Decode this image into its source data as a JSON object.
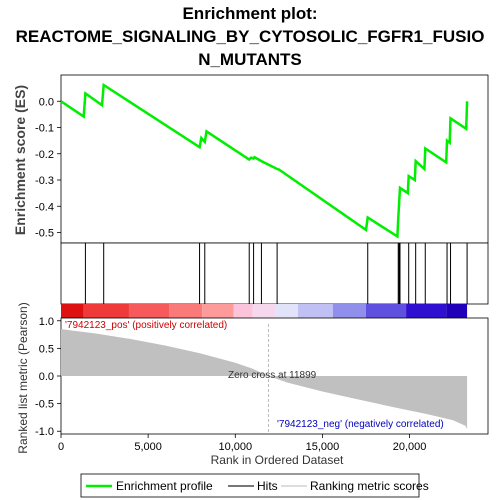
{
  "chart_data": {
    "type": "line",
    "title_lines": [
      "Enrichment plot:",
      "REACTOME_SIGNALING_BY_CYTOSOLIC_FGFR1_FUSIO",
      "N_MUTANTS"
    ],
    "es_panel": {
      "ylabel": "Enrichment score (ES)",
      "yticks": [
        "0.0",
        "-0.1",
        "-0.2",
        "-0.3",
        "-0.4",
        "-0.5"
      ],
      "ytick_values": [
        0.0,
        -0.1,
        -0.2,
        -0.3,
        -0.4,
        -0.5
      ],
      "ylim": [
        -0.54,
        0.1
      ],
      "line_color": "#00ee00",
      "points": [
        [
          0,
          0.0
        ],
        [
          1300,
          -0.058
        ],
        [
          1400,
          0.03
        ],
        [
          2350,
          -0.015
        ],
        [
          2450,
          0.062
        ],
        [
          7950,
          -0.175
        ],
        [
          8050,
          -0.14
        ],
        [
          8250,
          -0.155
        ],
        [
          8350,
          -0.115
        ],
        [
          10800,
          -0.222
        ],
        [
          10900,
          -0.215
        ],
        [
          11050,
          -0.218
        ],
        [
          11100,
          -0.213
        ],
        [
          11500,
          -0.228
        ],
        [
          12400,
          -0.258
        ],
        [
          12500,
          -0.26
        ],
        [
          17500,
          -0.49
        ],
        [
          17600,
          -0.443
        ],
        [
          19300,
          -0.515
        ],
        [
          19350,
          -0.45
        ],
        [
          19400,
          -0.39
        ],
        [
          19450,
          -0.33
        ],
        [
          19900,
          -0.35
        ],
        [
          19950,
          -0.285
        ],
        [
          20300,
          -0.3
        ],
        [
          20350,
          -0.228
        ],
        [
          20850,
          -0.258
        ],
        [
          20900,
          -0.18
        ],
        [
          22100,
          -0.233
        ],
        [
          22150,
          -0.15
        ],
        [
          22300,
          -0.158
        ],
        [
          22350,
          -0.065
        ],
        [
          23250,
          -0.105
        ],
        [
          23300,
          0.0
        ]
      ]
    },
    "hits": [
      1400,
      2450,
      7950,
      8250,
      10800,
      11050,
      11500,
      12400,
      17600,
      19350,
      19400,
      19450,
      19950,
      20350,
      20900,
      22150,
      22350,
      23300
    ],
    "ranked_panel": {
      "ylabel": "Ranked list metric (Pearson)",
      "yticks": [
        "1.0",
        "0.5",
        "0.0",
        "-0.5",
        "-1.0"
      ],
      "ytick_values": [
        1.0,
        0.5,
        0.0,
        -0.5,
        -1.0
      ],
      "ylim": [
        -1.05,
        1.05
      ],
      "fill_color": "#c0c0c0",
      "curve": [
        [
          0,
          0.85
        ],
        [
          500,
          0.83
        ],
        [
          2000,
          0.77
        ],
        [
          4000,
          0.67
        ],
        [
          6000,
          0.55
        ],
        [
          8000,
          0.41
        ],
        [
          10000,
          0.24
        ],
        [
          11000,
          0.13
        ],
        [
          11899,
          0.0
        ],
        [
          13000,
          -0.12
        ],
        [
          15000,
          -0.28
        ],
        [
          17000,
          -0.42
        ],
        [
          19000,
          -0.56
        ],
        [
          21000,
          -0.69
        ],
        [
          22500,
          -0.8
        ],
        [
          23200,
          -0.9
        ],
        [
          23300,
          -0.96
        ]
      ],
      "pos_label": "'7942123_pos' (positively correlated)",
      "neg_label": "'7942123_neg' (negatively correlated)",
      "zero_cross_label": "Zero cross at 11899",
      "zero_cross": 11899,
      "pos_color": "#dd0000",
      "neg_color": "#0000cc"
    },
    "color_bar": [
      {
        "x0": 0,
        "x1": 1300,
        "color": "#dd1111"
      },
      {
        "x0": 1300,
        "x1": 3900,
        "color": "#f03a3a"
      },
      {
        "x0": 3900,
        "x1": 6200,
        "color": "#f65a5a"
      },
      {
        "x0": 6200,
        "x1": 8100,
        "color": "#fa7a7a"
      },
      {
        "x0": 8100,
        "x1": 9900,
        "color": "#fd9a9a"
      },
      {
        "x0": 9900,
        "x1": 11000,
        "color": "#fbc4da"
      },
      {
        "x0": 11000,
        "x1": 12300,
        "color": "#f6d8ee"
      },
      {
        "x0": 12300,
        "x1": 13600,
        "color": "#e2e2f8"
      },
      {
        "x0": 13600,
        "x1": 15600,
        "color": "#c0c0f4"
      },
      {
        "x0": 15600,
        "x1": 17500,
        "color": "#9090ec"
      },
      {
        "x0": 17500,
        "x1": 19800,
        "color": "#6050e0"
      },
      {
        "x0": 19800,
        "x1": 22100,
        "color": "#3010d0"
      },
      {
        "x0": 22100,
        "x1": 23300,
        "color": "#2000b8"
      }
    ],
    "xlabel": "Rank in Ordered Dataset",
    "xticks": [
      "0",
      "5,000",
      "10,000",
      "15,000",
      "20,000"
    ],
    "xtick_values": [
      0,
      5000,
      10000,
      15000,
      20000
    ],
    "xlim": [
      0,
      24500
    ],
    "legend": [
      {
        "label": "Enrichment profile",
        "color": "#00ee00",
        "kind": "line"
      },
      {
        "label": "Hits",
        "color": "#777777",
        "kind": "line"
      },
      {
        "label": "Ranking metric scores",
        "color": "#dddddd",
        "kind": "line"
      }
    ]
  }
}
